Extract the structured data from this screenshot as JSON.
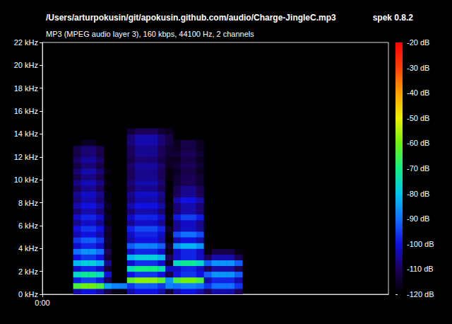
{
  "chart_data": {
    "type": "heatmap",
    "title": "/Users/arturpokusin/git/apokusin.github.com/audio/Charge-JingleC.mp3",
    "subtitle": "MP3 (MPEG audio layer 3), 160 kbps, 44100 Hz, 2 channels",
    "annotation": "spek 0.8.2",
    "x": [
      0.08,
      0.1,
      0.12,
      0.14,
      0.16,
      0.18,
      0.2,
      0.22,
      0.24,
      0.26,
      0.28,
      0.3,
      0.32,
      0.34,
      0.36,
      0.38,
      0.4,
      0.42,
      0.44,
      0.46,
      0.48,
      0.5
    ],
    "y": [
      0,
      0.5,
      1,
      1.5,
      2,
      2.5,
      3,
      3.5,
      4,
      4.5,
      5,
      5.5,
      6,
      6.5,
      7,
      7.5,
      8,
      8.5,
      9,
      9.5,
      10,
      10.5,
      11,
      11.5,
      12,
      12.5,
      13,
      13.5,
      14
    ],
    "values": [
      [
        -104,
        -64,
        -99,
        -76,
        -102,
        -82,
        -100,
        -90,
        -102,
        -96,
        -104,
        -100,
        -106,
        -102,
        -108,
        -104,
        -108,
        -106,
        -110,
        -107,
        -111,
        -108,
        -112,
        -109,
        -112,
        -112,
        -120,
        -120,
        -120
      ],
      [
        -100,
        -60,
        -95,
        -72,
        -98,
        -78,
        -96,
        -86,
        -98,
        -92,
        -100,
        -96,
        -102,
        -98,
        -104,
        -100,
        -104,
        -102,
        -106,
        -103,
        -107,
        -104,
        -108,
        -105,
        -108,
        -108,
        -116,
        -120,
        -120
      ],
      [
        -100,
        -60,
        -95,
        -72,
        -98,
        -78,
        -96,
        -86,
        -98,
        -92,
        -100,
        -96,
        -102,
        -98,
        -104,
        -100,
        -104,
        -102,
        -106,
        -103,
        -107,
        -104,
        -108,
        -105,
        -108,
        -108,
        -116,
        -120,
        -120
      ],
      [
        -104,
        -64,
        -99,
        -76,
        -102,
        -82,
        -100,
        -90,
        -102,
        -96,
        -104,
        -100,
        -106,
        -102,
        -108,
        -104,
        -108,
        -106,
        -110,
        -107,
        -111,
        -108,
        -112,
        -109,
        -112,
        -112,
        -120,
        -120,
        -120
      ],
      [
        -112,
        -84,
        -110,
        -100,
        -114,
        -106,
        -114,
        -110,
        -116,
        -114,
        -116,
        -114,
        -118,
        -116,
        -118,
        -116,
        -118,
        -118,
        -120,
        -118,
        -120,
        -118,
        -120,
        -120,
        -120,
        -120,
        -120,
        -120,
        -120
      ],
      [
        -118,
        -88,
        -120,
        -120,
        -120,
        -120,
        -120,
        -120,
        -120,
        -120,
        -120,
        -120,
        -120,
        -120,
        -120,
        -120,
        -120,
        -120,
        -120,
        -120,
        -120,
        -120,
        -120,
        -120,
        -120,
        -120,
        -120,
        -120,
        -120
      ],
      [
        -118,
        -88,
        -120,
        -120,
        -120,
        -120,
        -120,
        -120,
        -120,
        -120,
        -120,
        -120,
        -120,
        -120,
        -120,
        -120,
        -120,
        -120,
        -120,
        -120,
        -120,
        -120,
        -120,
        -120,
        -120,
        -120,
        -120,
        -120,
        -120
      ],
      [
        -104,
        -96,
        -62,
        -100,
        -74,
        -101,
        -82,
        -102,
        -92,
        -104,
        -102,
        -98,
        -106,
        -102,
        -108,
        -104,
        -108,
        -106,
        -110,
        -108,
        -110,
        -110,
        -109,
        -112,
        -110,
        -110,
        -108,
        -108,
        -114
      ],
      [
        -100,
        -92,
        -58,
        -96,
        -70,
        -97,
        -78,
        -98,
        -88,
        -100,
        -98,
        -94,
        -102,
        -98,
        -104,
        -100,
        -104,
        -102,
        -106,
        -104,
        -106,
        -106,
        -105,
        -108,
        -106,
        -106,
        -104,
        -104,
        -110
      ],
      [
        -100,
        -92,
        -58,
        -96,
        -70,
        -97,
        -78,
        -98,
        -88,
        -100,
        -98,
        -94,
        -102,
        -98,
        -104,
        -100,
        -104,
        -102,
        -106,
        -104,
        -106,
        -106,
        -105,
        -108,
        -106,
        -106,
        -104,
        -104,
        -110
      ],
      [
        -100,
        -92,
        -58,
        -96,
        -70,
        -97,
        -78,
        -98,
        -88,
        -100,
        -98,
        -94,
        -102,
        -98,
        -104,
        -100,
        -104,
        -102,
        -106,
        -104,
        -106,
        -106,
        -105,
        -108,
        -106,
        -106,
        -104,
        -104,
        -110
      ],
      [
        -104,
        -96,
        -62,
        -100,
        -74,
        -101,
        -82,
        -102,
        -92,
        -104,
        -102,
        -98,
        -106,
        -102,
        -108,
        -104,
        -108,
        -106,
        -110,
        -108,
        -110,
        -110,
        -109,
        -112,
        -110,
        -110,
        -108,
        -108,
        -114
      ],
      [
        -114,
        -88,
        -86,
        -112,
        -102,
        -116,
        -110,
        -118,
        -114,
        -120,
        -118,
        -116,
        -120,
        -118,
        -120,
        -118,
        -120,
        -120,
        -120,
        -120,
        -118,
        -118,
        -116,
        -116,
        -114,
        -114,
        -112,
        -112,
        -116
      ],
      [
        -104,
        -90,
        -64,
        -100,
        -102,
        -76,
        -102,
        -102,
        -86,
        -104,
        -94,
        -106,
        -106,
        -99,
        -108,
        -108,
        -104,
        -110,
        -110,
        -114,
        -114,
        -116,
        -114,
        -116,
        -114,
        -116,
        -116,
        -120,
        -120
      ],
      [
        -100,
        -88,
        -60,
        -96,
        -98,
        -72,
        -98,
        -98,
        -82,
        -100,
        -90,
        -102,
        -102,
        -95,
        -104,
        -104,
        -100,
        -106,
        -106,
        -110,
        -110,
        -112,
        -110,
        -112,
        -110,
        -112,
        -112,
        -120,
        -120
      ],
      [
        -100,
        -88,
        -60,
        -96,
        -98,
        -72,
        -98,
        -98,
        -82,
        -100,
        -90,
        -102,
        -102,
        -95,
        -104,
        -104,
        -100,
        -106,
        -106,
        -110,
        -110,
        -112,
        -110,
        -112,
        -110,
        -112,
        -112,
        -120,
        -120
      ],
      [
        -104,
        -90,
        -64,
        -100,
        -102,
        -76,
        -102,
        -102,
        -86,
        -104,
        -94,
        -106,
        -106,
        -99,
        -108,
        -108,
        -104,
        -110,
        -110,
        -114,
        -114,
        -116,
        -114,
        -116,
        -114,
        -116,
        -116,
        -120,
        -120
      ],
      [
        -110,
        -96,
        -104,
        -92,
        -110,
        -92,
        -110,
        -118,
        -120,
        -120,
        -120,
        -120,
        -120,
        -120,
        -120,
        -120,
        -120,
        -120,
        -120,
        -120,
        -120,
        -120,
        -120,
        -120,
        -120,
        -120,
        -120,
        -120,
        -120
      ],
      [
        -104,
        -90,
        -98,
        -86,
        -104,
        -86,
        -104,
        -112,
        -120,
        -120,
        -120,
        -120,
        -120,
        -120,
        -120,
        -120,
        -120,
        -120,
        -120,
        -120,
        -120,
        -120,
        -120,
        -120,
        -120,
        -120,
        -120,
        -120,
        -120
      ],
      [
        -104,
        -90,
        -98,
        -86,
        -104,
        -86,
        -104,
        -112,
        -120,
        -120,
        -120,
        -120,
        -120,
        -120,
        -120,
        -120,
        -120,
        -120,
        -120,
        -120,
        -120,
        -120,
        -120,
        -120,
        -120,
        -120,
        -120,
        -120,
        -120
      ],
      [
        -104,
        -90,
        -98,
        -86,
        -104,
        -86,
        -104,
        -112,
        -120,
        -120,
        -120,
        -120,
        -120,
        -120,
        -120,
        -120,
        -120,
        -120,
        -120,
        -120,
        -120,
        -120,
        -120,
        -120,
        -120,
        -120,
        -120,
        -120,
        -120
      ],
      [
        -110,
        -96,
        -104,
        -92,
        -110,
        -92,
        -110,
        -118,
        -120,
        -120,
        -120,
        -120,
        -120,
        -120,
        -120,
        -120,
        -120,
        -120,
        -120,
        -120,
        -120,
        -120,
        -120,
        -120,
        -120,
        -120,
        -120,
        -120,
        -120
      ]
    ],
    "xlim": [
      0,
      0.9
    ],
    "xticks": [
      {
        "value": 0,
        "label": "0:00"
      }
    ],
    "ylim": [
      0,
      22
    ],
    "yticks": [
      {
        "value": 0,
        "label": "0 kHz"
      },
      {
        "value": 2,
        "label": "2 kHz"
      },
      {
        "value": 4,
        "label": "4 kHz"
      },
      {
        "value": 6,
        "label": "6 kHz"
      },
      {
        "value": 8,
        "label": "8 kHz"
      },
      {
        "value": 10,
        "label": "10 kHz"
      },
      {
        "value": 12,
        "label": "12 kHz"
      },
      {
        "value": 14,
        "label": "14 kHz"
      },
      {
        "value": 16,
        "label": "16 kHz"
      },
      {
        "value": 18,
        "label": "18 kHz"
      },
      {
        "value": 20,
        "label": "20 kHz"
      },
      {
        "value": 22,
        "label": "22 kHz"
      }
    ],
    "colorbar": {
      "range": [
        -120,
        -20
      ],
      "ticks": [
        {
          "value": -120,
          "label": "-120 dB"
        },
        {
          "value": -110,
          "label": "-110 dB"
        },
        {
          "value": -100,
          "label": "-100 dB"
        },
        {
          "value": -90,
          "label": "-90 dB"
        },
        {
          "value": -80,
          "label": "-80 dB"
        },
        {
          "value": -70,
          "label": "-70 dB"
        },
        {
          "value": -60,
          "label": "-60 dB"
        },
        {
          "value": -50,
          "label": "-50 dB"
        },
        {
          "value": -40,
          "label": "-40 dB"
        },
        {
          "value": -30,
          "label": "-30 dB"
        },
        {
          "value": -20,
          "label": "-20 dB"
        }
      ]
    },
    "grid": false
  }
}
